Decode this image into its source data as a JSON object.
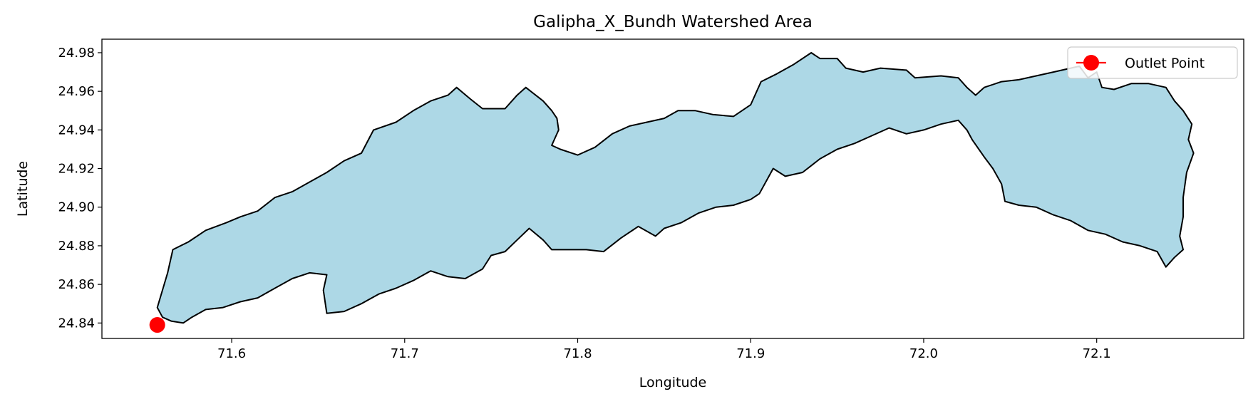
{
  "chart_data": {
    "type": "map",
    "title": "Galipha_X_Bundh Watershed Area",
    "xlabel": "Longitude",
    "ylabel": "Latitude",
    "xlim": [
      71.525,
      72.185
    ],
    "ylim": [
      24.832,
      24.987
    ],
    "xticks": [
      71.6,
      71.7,
      71.8,
      71.9,
      72.0,
      72.1
    ],
    "yticks": [
      24.84,
      24.86,
      24.88,
      24.9,
      24.92,
      24.94,
      24.96,
      24.98
    ],
    "xtick_labels": [
      "71.6",
      "71.7",
      "71.8",
      "71.9",
      "72.0",
      "72.1"
    ],
    "ytick_labels": [
      "24.84",
      "24.86",
      "24.88",
      "24.90",
      "24.92",
      "24.94",
      "24.96",
      "24.98"
    ],
    "grid": false,
    "legend": {
      "placement": "top-right",
      "entries": [
        "Outlet Point"
      ]
    },
    "watershed": {
      "fill_color": "#add8e6",
      "edge_color": "#000000",
      "boundary": [
        [
          71.557,
          24.848
        ],
        [
          71.563,
          24.866
        ],
        [
          71.566,
          24.878
        ],
        [
          71.575,
          24.882
        ],
        [
          71.585,
          24.888
        ],
        [
          71.597,
          24.892
        ],
        [
          71.605,
          24.895
        ],
        [
          71.615,
          24.898
        ],
        [
          71.625,
          24.905
        ],
        [
          71.635,
          24.908
        ],
        [
          71.645,
          24.913
        ],
        [
          71.655,
          24.918
        ],
        [
          71.665,
          24.924
        ],
        [
          71.675,
          24.928
        ],
        [
          71.682,
          24.94
        ],
        [
          71.695,
          24.944
        ],
        [
          71.705,
          24.95
        ],
        [
          71.715,
          24.955
        ],
        [
          71.725,
          24.958
        ],
        [
          71.73,
          24.962
        ],
        [
          71.738,
          24.956
        ],
        [
          71.745,
          24.951
        ],
        [
          71.758,
          24.951
        ],
        [
          71.765,
          24.958
        ],
        [
          71.77,
          24.962
        ],
        [
          71.78,
          24.955
        ],
        [
          71.785,
          24.95
        ],
        [
          71.788,
          24.946
        ],
        [
          71.789,
          24.94
        ],
        [
          71.785,
          24.932
        ],
        [
          71.79,
          24.93
        ],
        [
          71.8,
          24.927
        ],
        [
          71.81,
          24.931
        ],
        [
          71.82,
          24.938
        ],
        [
          71.83,
          24.942
        ],
        [
          71.84,
          24.944
        ],
        [
          71.85,
          24.946
        ],
        [
          71.858,
          24.95
        ],
        [
          71.868,
          24.95
        ],
        [
          71.878,
          24.948
        ],
        [
          71.89,
          24.947
        ],
        [
          71.9,
          24.953
        ],
        [
          71.906,
          24.965
        ],
        [
          71.915,
          24.969
        ],
        [
          71.925,
          24.974
        ],
        [
          71.935,
          24.98
        ],
        [
          71.94,
          24.977
        ],
        [
          71.95,
          24.977
        ],
        [
          71.955,
          24.972
        ],
        [
          71.965,
          24.97
        ],
        [
          71.975,
          24.972
        ],
        [
          71.99,
          24.971
        ],
        [
          71.995,
          24.967
        ],
        [
          72.01,
          24.968
        ],
        [
          72.02,
          24.967
        ],
        [
          72.025,
          24.962
        ],
        [
          72.03,
          24.958
        ],
        [
          72.035,
          24.962
        ],
        [
          72.045,
          24.965
        ],
        [
          72.055,
          24.966
        ],
        [
          72.065,
          24.968
        ],
        [
          72.075,
          24.97
        ],
        [
          72.085,
          24.972
        ],
        [
          72.09,
          24.973
        ],
        [
          72.095,
          24.967
        ],
        [
          72.1,
          24.97
        ],
        [
          72.103,
          24.962
        ],
        [
          72.11,
          24.961
        ],
        [
          72.12,
          24.964
        ],
        [
          72.13,
          24.964
        ],
        [
          72.14,
          24.962
        ],
        [
          72.145,
          24.955
        ],
        [
          72.15,
          24.95
        ],
        [
          72.155,
          24.943
        ],
        [
          72.153,
          24.935
        ],
        [
          72.156,
          24.928
        ],
        [
          72.152,
          24.918
        ],
        [
          72.15,
          24.905
        ],
        [
          72.15,
          24.895
        ],
        [
          72.148,
          24.885
        ],
        [
          72.15,
          24.878
        ],
        [
          72.145,
          24.874
        ],
        [
          72.14,
          24.869
        ],
        [
          72.135,
          24.877
        ],
        [
          72.125,
          24.88
        ],
        [
          72.115,
          24.882
        ],
        [
          72.105,
          24.886
        ],
        [
          72.095,
          24.888
        ],
        [
          72.085,
          24.893
        ],
        [
          72.075,
          24.896
        ],
        [
          72.065,
          24.9
        ],
        [
          72.055,
          24.901
        ],
        [
          72.047,
          24.903
        ],
        [
          72.045,
          24.912
        ],
        [
          72.04,
          24.92
        ],
        [
          72.035,
          24.926
        ],
        [
          72.028,
          24.935
        ],
        [
          72.025,
          24.94
        ],
        [
          72.02,
          24.945
        ],
        [
          72.01,
          24.943
        ],
        [
          72.0,
          24.94
        ],
        [
          71.99,
          24.938
        ],
        [
          71.98,
          24.941
        ],
        [
          71.97,
          24.937
        ],
        [
          71.96,
          24.933
        ],
        [
          71.95,
          24.93
        ],
        [
          71.94,
          24.925
        ],
        [
          71.93,
          24.918
        ],
        [
          71.92,
          24.916
        ],
        [
          71.913,
          24.92
        ],
        [
          71.905,
          24.907
        ],
        [
          71.9,
          24.904
        ],
        [
          71.89,
          24.901
        ],
        [
          71.88,
          24.9
        ],
        [
          71.87,
          24.897
        ],
        [
          71.86,
          24.892
        ],
        [
          71.85,
          24.889
        ],
        [
          71.845,
          24.885
        ],
        [
          71.835,
          24.89
        ],
        [
          71.825,
          24.884
        ],
        [
          71.815,
          24.877
        ],
        [
          71.805,
          24.878
        ],
        [
          71.795,
          24.878
        ],
        [
          71.785,
          24.878
        ],
        [
          71.78,
          24.883
        ],
        [
          71.772,
          24.889
        ],
        [
          71.765,
          24.883
        ],
        [
          71.758,
          24.877
        ],
        [
          71.75,
          24.875
        ],
        [
          71.745,
          24.868
        ],
        [
          71.735,
          24.863
        ],
        [
          71.725,
          24.864
        ],
        [
          71.715,
          24.867
        ],
        [
          71.705,
          24.862
        ],
        [
          71.695,
          24.858
        ],
        [
          71.685,
          24.855
        ],
        [
          71.675,
          24.85
        ],
        [
          71.665,
          24.846
        ],
        [
          71.655,
          24.845
        ],
        [
          71.653,
          24.857
        ],
        [
          71.655,
          24.865
        ],
        [
          71.645,
          24.866
        ],
        [
          71.635,
          24.863
        ],
        [
          71.625,
          24.858
        ],
        [
          71.615,
          24.853
        ],
        [
          71.605,
          24.851
        ],
        [
          71.595,
          24.848
        ],
        [
          71.585,
          24.847
        ],
        [
          71.577,
          24.843
        ],
        [
          71.572,
          24.84
        ],
        [
          71.565,
          24.841
        ],
        [
          71.56,
          24.843
        ],
        [
          71.557,
          24.848
        ]
      ]
    },
    "outlet_point": {
      "name": "Outlet Point",
      "lon": 71.557,
      "lat": 24.839,
      "color": "#ff0000"
    }
  }
}
